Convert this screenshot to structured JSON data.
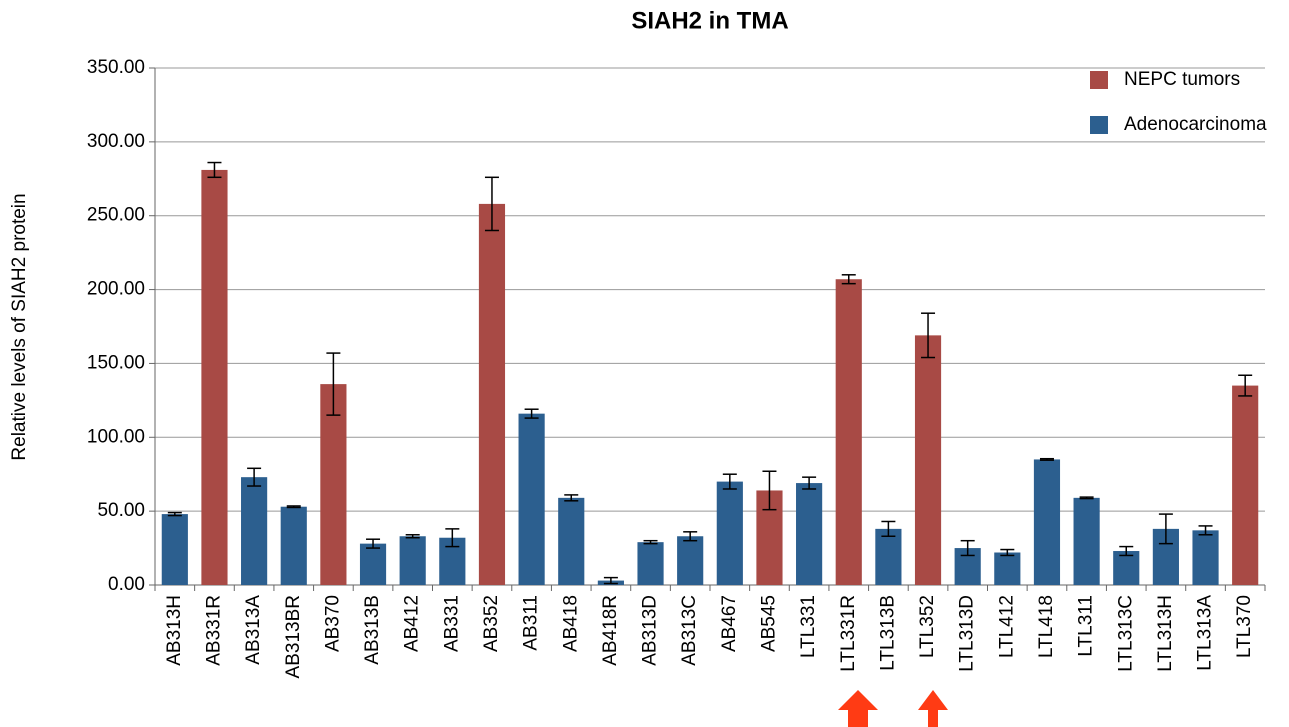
{
  "chart_data": {
    "type": "bar",
    "title": "SIAH2 in TMA",
    "y_label": "Relative levels of SIAH2 protein",
    "categories": [
      "AB313H",
      "AB331R",
      "AB313A",
      "AB313BR",
      "AB370",
      "AB313B",
      "AB412",
      "AB331",
      "AB352",
      "AB311",
      "AB418",
      "AB418R",
      "AB313D",
      "AB313C",
      "AB467",
      "AB545",
      "LTL331",
      "LTL331R",
      "LTL313B",
      "LTL352",
      "LTL313D",
      "LTL412",
      "LTL418",
      "LTL311",
      "LTL313C",
      "LTL313H",
      "LTL313A",
      "LTL370"
    ],
    "series": [
      {
        "name": "NEPC tumors",
        "color": "#a84a45",
        "values": [
          null,
          281,
          null,
          null,
          136,
          null,
          null,
          null,
          258,
          null,
          null,
          null,
          null,
          null,
          null,
          64,
          null,
          207,
          null,
          169,
          null,
          null,
          null,
          null,
          null,
          null,
          null,
          135
        ],
        "errors": [
          null,
          5,
          null,
          null,
          21,
          null,
          null,
          null,
          18,
          null,
          null,
          null,
          null,
          null,
          null,
          13,
          null,
          3,
          null,
          15,
          null,
          null,
          null,
          null,
          null,
          null,
          null,
          7
        ]
      },
      {
        "name": "Adenocarcinoma",
        "color": "#2c5f8f",
        "values": [
          48,
          null,
          73,
          53,
          null,
          28,
          33,
          32,
          null,
          116,
          59,
          3,
          29,
          33,
          70,
          null,
          69,
          null,
          38,
          null,
          25,
          22,
          85,
          59,
          23,
          38,
          37,
          null
        ],
        "errors": [
          1,
          null,
          6,
          0.5,
          null,
          3,
          1,
          6,
          null,
          3,
          2,
          2,
          1,
          3,
          5,
          null,
          4,
          null,
          5,
          null,
          5,
          2,
          0.5,
          0.5,
          3,
          10,
          3,
          null
        ]
      }
    ],
    "ylim": [
      0,
      350
    ],
    "yticks": [
      {
        "value": 0,
        "label": "0.00"
      },
      {
        "value": 50,
        "label": "50.00"
      },
      {
        "value": 100,
        "label": "100.00"
      },
      {
        "value": 150,
        "label": "150.00"
      },
      {
        "value": 200,
        "label": "200.00"
      },
      {
        "value": 250,
        "label": "250.00"
      },
      {
        "value": 300,
        "label": "300.00"
      },
      {
        "value": 350,
        "label": "350.00"
      }
    ],
    "grid": true,
    "legend": "top-right"
  }
}
